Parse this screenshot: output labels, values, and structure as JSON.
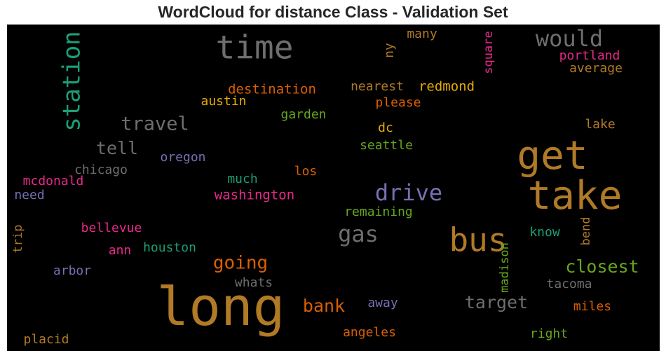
{
  "chart_data": {
    "type": "wordcloud",
    "title": "WordCloud for distance Class - Validation Set",
    "background": "#000000",
    "words": [
      {
        "text": "long",
        "color": "#b07a26"
      },
      {
        "text": "time",
        "color": "#6e6e6e"
      },
      {
        "text": "take",
        "color": "#b07a26"
      },
      {
        "text": "get",
        "color": "#b07a26"
      },
      {
        "text": "bus",
        "color": "#b07a26"
      },
      {
        "text": "station",
        "color": "#1b9e77"
      },
      {
        "text": "drive",
        "color": "#7570b3"
      },
      {
        "text": "would",
        "color": "#6e6e6e"
      },
      {
        "text": "gas",
        "color": "#6e6e6e"
      },
      {
        "text": "travel",
        "color": "#6e6e6e"
      },
      {
        "text": "going",
        "color": "#d95f02"
      },
      {
        "text": "closest",
        "color": "#66a61e"
      },
      {
        "text": "target",
        "color": "#6e6e6e"
      },
      {
        "text": "tell",
        "color": "#6e6e6e"
      },
      {
        "text": "bank",
        "color": "#d95f02"
      },
      {
        "text": "destination",
        "color": "#d95f02"
      },
      {
        "text": "redmond",
        "color": "#e6ab02"
      },
      {
        "text": "nearest",
        "color": "#b07a26"
      },
      {
        "text": "washington",
        "color": "#e7298a"
      },
      {
        "text": "portland",
        "color": "#e7298a"
      },
      {
        "text": "seattle",
        "color": "#66a61e"
      },
      {
        "text": "remaining",
        "color": "#66a61e"
      },
      {
        "text": "houston",
        "color": "#1b9e77"
      },
      {
        "text": "bellevue",
        "color": "#e7298a"
      },
      {
        "text": "mcdonald",
        "color": "#e7298a"
      },
      {
        "text": "oregon",
        "color": "#7570b3"
      },
      {
        "text": "chicago",
        "color": "#6e6e6e"
      },
      {
        "text": "austin",
        "color": "#e6ab02"
      },
      {
        "text": "garden",
        "color": "#66a61e"
      },
      {
        "text": "please",
        "color": "#d95f02"
      },
      {
        "text": "average",
        "color": "#b07a26"
      },
      {
        "text": "square",
        "color": "#e7298a"
      },
      {
        "text": "madison",
        "color": "#66a61e"
      },
      {
        "text": "angeles",
        "color": "#d95f02"
      },
      {
        "text": "miles",
        "color": "#d95f02"
      },
      {
        "text": "tacoma",
        "color": "#6e6e6e"
      },
      {
        "text": "placid",
        "color": "#b07a26"
      },
      {
        "text": "arbor",
        "color": "#7570b3"
      },
      {
        "text": "whats",
        "color": "#6e6e6e"
      },
      {
        "text": "away",
        "color": "#7570b3"
      },
      {
        "text": "right",
        "color": "#66a61e"
      },
      {
        "text": "know",
        "color": "#1b9e77"
      },
      {
        "text": "bend",
        "color": "#b07a26"
      },
      {
        "text": "lake",
        "color": "#b07a26"
      },
      {
        "text": "much",
        "color": "#1b9e77"
      },
      {
        "text": "los",
        "color": "#d95f02"
      },
      {
        "text": "dc",
        "color": "#e6ab02"
      },
      {
        "text": "many",
        "color": "#b07a26"
      },
      {
        "text": "ny",
        "color": "#b07a26"
      },
      {
        "text": "need",
        "color": "#7570b3"
      },
      {
        "text": "trip",
        "color": "#b07a26"
      },
      {
        "text": "ann",
        "color": "#e7298a"
      }
    ]
  }
}
